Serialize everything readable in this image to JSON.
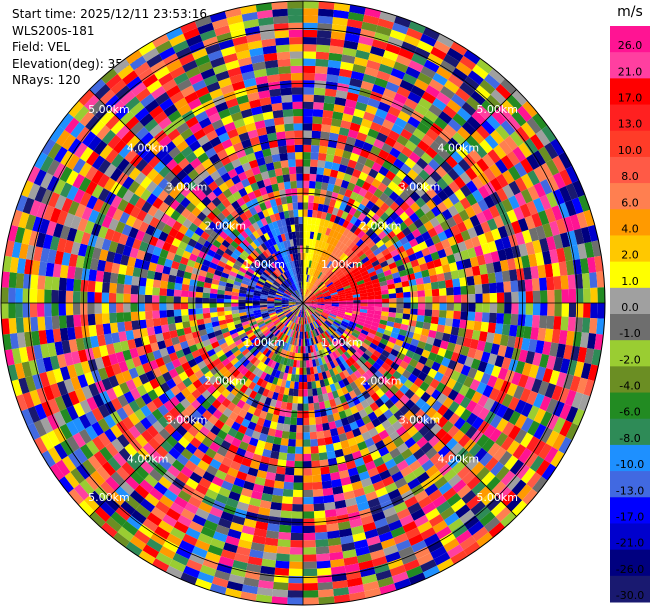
{
  "header": {
    "start_time": "Start time: 2025/12/11 23:53:16",
    "site": "WLS200s-181",
    "field": "Field: VEL",
    "elevation": "Elevation(deg): 35.00",
    "nrays": "NRays: 120"
  },
  "chart_data": {
    "type": "heatmap",
    "projection": "polar-ppi",
    "field": "VEL",
    "unit": "m/s",
    "nrays": 120,
    "range_rings_km": [
      "1.00km",
      "2.00km",
      "3.00km",
      "4.00km",
      "5.00km"
    ],
    "range_ring_values_km": [
      1,
      2,
      3,
      4,
      5
    ],
    "max_range_km": 5.5,
    "colorbar": {
      "ticks": [
        "26.0",
        "21.0",
        "17.0",
        "13.0",
        "10.0",
        "8.0",
        "6.0",
        "4.0",
        "2.0",
        "1.0",
        "0.0",
        "-1.0",
        "-2.0",
        "-4.0",
        "-6.0",
        "-8.0",
        "-10.0",
        "-13.0",
        "-17.0",
        "-21.0",
        "-26.0",
        "-30.0"
      ],
      "colors": [
        "#ff1493",
        "#ff3fa0",
        "#ff0000",
        "#ff2020",
        "#ff3c28",
        "#ff5a46",
        "#ff7f50",
        "#ff9a00",
        "#ffc800",
        "#ffff00",
        "#a0a0a0",
        "#6e6e6e",
        "#9acd32",
        "#6b8e23",
        "#228b22",
        "#2e8b57",
        "#1e90ff",
        "#4169e1",
        "#0000ff",
        "#0000cd",
        "#000080",
        "#191970"
      ]
    },
    "near_field_pattern": {
      "north_east_colors": [
        "#ffff00",
        "#ffc800",
        "#ff9a00",
        "#ff7f50",
        "#ff5a46",
        "#ff3c28",
        "#ff0000"
      ],
      "north_west_colors": [
        "#0000ff",
        "#1e90ff",
        "#4169e1",
        "#000080",
        "#191970"
      ],
      "east_color": "#ff1493"
    }
  }
}
